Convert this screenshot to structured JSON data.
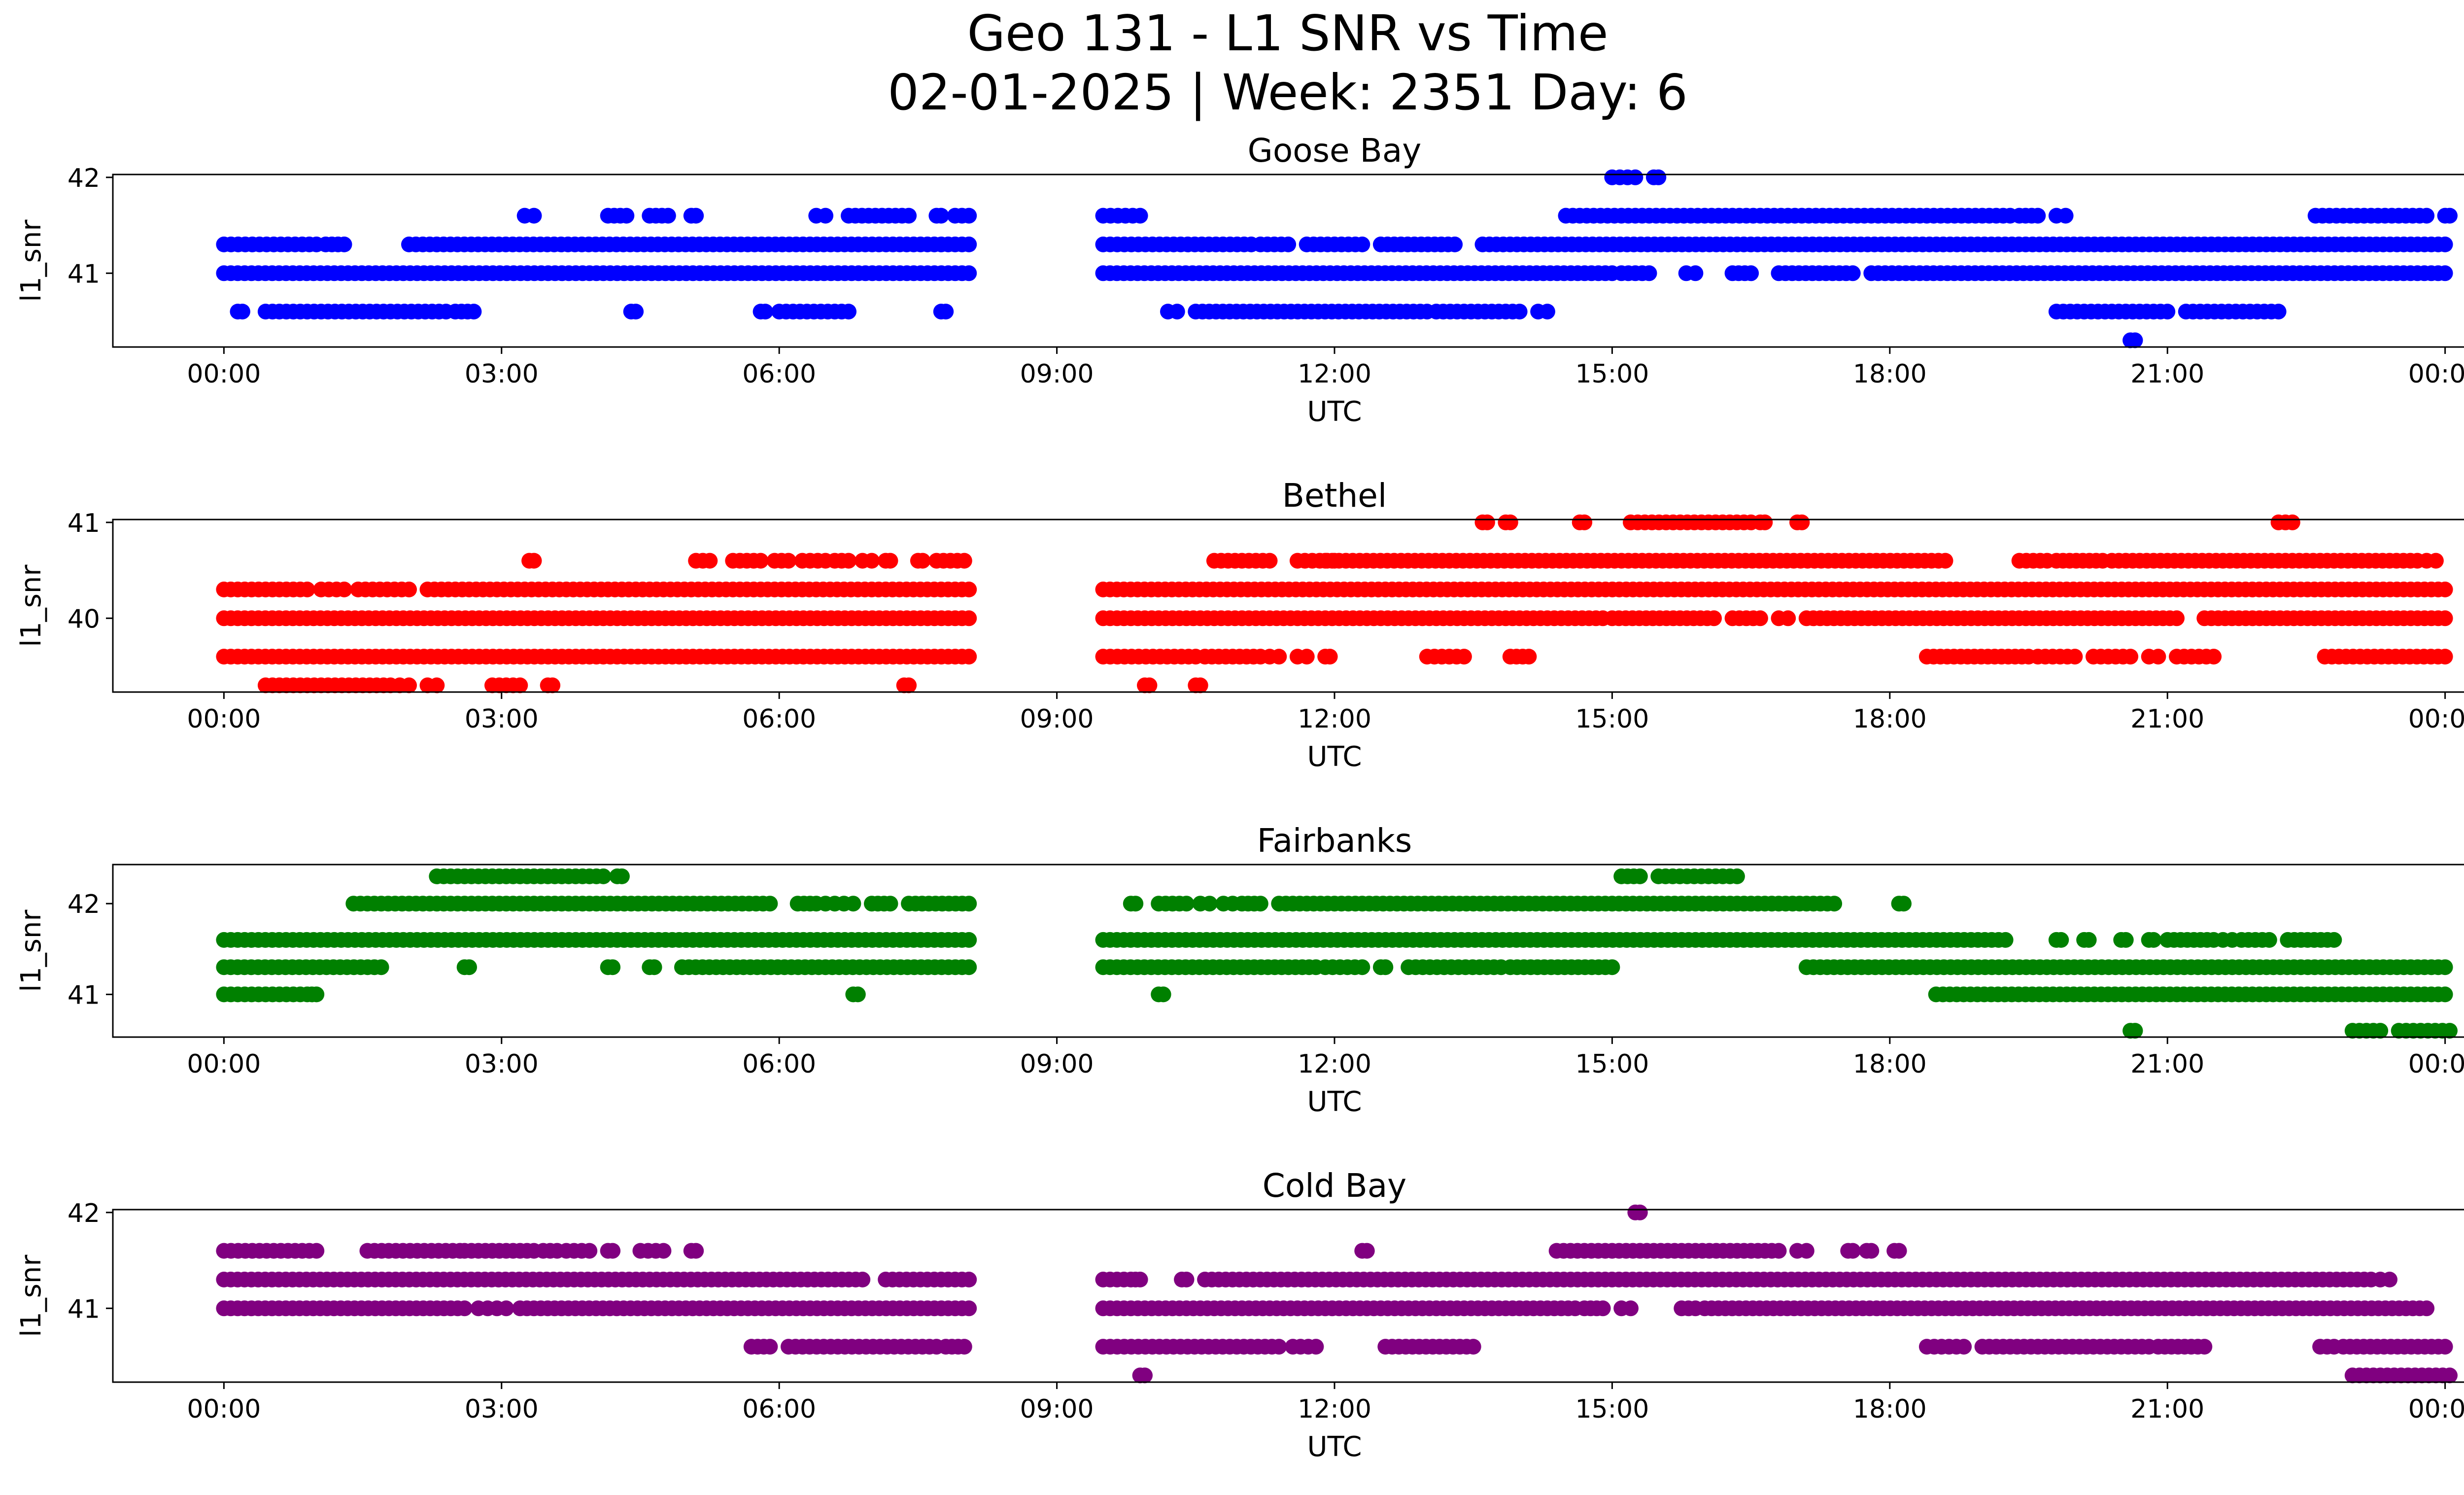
{
  "chart_data": {
    "type": "scatter",
    "title": "Geo 131 - L1 SNR vs Time",
    "subtitle": "02-01-2025 | Week: 2351 Day: 6",
    "x_tick_labels": [
      "00:00",
      "03:00",
      "06:00",
      "09:00",
      "12:00",
      "15:00",
      "18:00",
      "21:00",
      "00:00"
    ],
    "x_tick_hours": [
      0,
      3,
      6,
      9,
      12,
      15,
      18,
      21,
      24
    ],
    "xlim_hours": [
      -1.2,
      25.2
    ],
    "xlabel": "UTC",
    "ylabel": "l1_snr",
    "panels": [
      {
        "name": "Goose Bay",
        "color": "#0000ff",
        "ylim": [
          40.23,
          42.03
        ],
        "y_ticks": [
          41,
          42
        ],
        "y_tick_labels": [
          "41",
          "42"
        ],
        "bands": [
          {
            "y": 41.3,
            "segments": [
              [
                0.0,
                1.0
              ],
              [
                1.1,
                1.3
              ],
              [
                2.0,
                8.05
              ],
              [
                9.5,
                11.1
              ],
              [
                11.2,
                11.5
              ],
              [
                11.7,
                12.3
              ],
              [
                12.5,
                13.3
              ],
              [
                13.6,
                24.0
              ]
            ]
          },
          {
            "y": 41.0,
            "segments": [
              [
                0.0,
                8.05
              ],
              [
                9.5,
                15.0
              ],
              [
                15.1,
                15.4
              ],
              [
                15.8,
                15.9
              ],
              [
                16.3,
                16.5
              ],
              [
                16.8,
                17.6
              ],
              [
                17.8,
                24.0
              ]
            ]
          },
          {
            "y": 40.6,
            "segments": [
              [
                0.15,
                0.2
              ],
              [
                0.45,
                2.4
              ],
              [
                2.5,
                2.7
              ],
              [
                4.4,
                4.45
              ],
              [
                5.8,
                5.85
              ],
              [
                6.0,
                6.75
              ],
              [
                7.75,
                7.8
              ],
              [
                10.2,
                10.3
              ],
              [
                10.5,
                13.0
              ],
              [
                13.1,
                14.0
              ],
              [
                14.2,
                14.3
              ],
              [
                19.8,
                21.0
              ],
              [
                21.2,
                22.2
              ]
            ]
          },
          {
            "y": 41.6,
            "segments": [
              [
                3.25,
                3.35
              ],
              [
                4.15,
                4.35
              ],
              [
                4.6,
                4.8
              ],
              [
                5.05,
                5.1
              ],
              [
                6.4,
                6.5
              ],
              [
                6.75,
                7.4
              ],
              [
                7.7,
                7.75
              ],
              [
                7.9,
                8.05
              ],
              [
                9.5,
                9.9
              ],
              [
                14.5,
                19.3
              ],
              [
                19.4,
                19.6
              ],
              [
                19.8,
                19.9
              ],
              [
                22.6,
                23.8
              ],
              [
                24.0,
                24.05
              ]
            ]
          },
          {
            "y": 42.0,
            "segments": [
              [
                15.0,
                15.25
              ],
              [
                15.45,
                15.5
              ]
            ]
          },
          {
            "y": 40.3,
            "segments": [
              [
                20.6,
                20.65
              ]
            ]
          }
        ]
      },
      {
        "name": "Bethel",
        "color": "#ff0000",
        "ylim": [
          39.23,
          41.03
        ],
        "y_ticks": [
          40,
          41
        ],
        "y_tick_labels": [
          "40",
          "41"
        ],
        "bands": [
          {
            "y": 40.3,
            "segments": [
              [
                0.0,
                0.9
              ],
              [
                1.05,
                1.3
              ],
              [
                1.45,
                2.0
              ],
              [
                2.2,
                8.05
              ],
              [
                9.5,
                24.0
              ]
            ]
          },
          {
            "y": 40.0,
            "segments": [
              [
                0.0,
                8.05
              ],
              [
                9.5,
                14.9
              ],
              [
                15.0,
                16.1
              ],
              [
                16.3,
                16.6
              ],
              [
                16.8,
                16.9
              ],
              [
                17.1,
                21.1
              ],
              [
                21.4,
                24.0
              ]
            ]
          },
          {
            "y": 39.6,
            "segments": [
              [
                0.0,
                8.05
              ],
              [
                9.5,
                10.5
              ],
              [
                10.6,
                11.2
              ],
              [
                11.3,
                11.4
              ],
              [
                11.6,
                11.7
              ],
              [
                11.9,
                11.95
              ],
              [
                13.0,
                13.4
              ],
              [
                13.9,
                14.1
              ],
              [
                18.4,
                19.5
              ],
              [
                19.6,
                20.0
              ],
              [
                20.2,
                20.6
              ],
              [
                20.8,
                20.9
              ],
              [
                21.1,
                21.5
              ],
              [
                22.7,
                24.0
              ]
            ]
          },
          {
            "y": 39.3,
            "segments": [
              [
                0.45,
                1.8
              ],
              [
                1.9,
                2.0
              ],
              [
                2.2,
                2.3
              ],
              [
                2.9,
                3.2
              ],
              [
                3.5,
                3.55
              ],
              [
                7.35,
                7.4
              ],
              [
                9.95,
                10.0
              ],
              [
                10.5,
                10.55
              ]
            ]
          },
          {
            "y": 40.6,
            "segments": [
              [
                3.3,
                3.35
              ],
              [
                5.1,
                5.25
              ],
              [
                5.5,
                5.8
              ],
              [
                5.95,
                6.1
              ],
              [
                6.25,
                6.5
              ],
              [
                6.6,
                6.75
              ],
              [
                6.9,
                7.0
              ],
              [
                7.15,
                7.2
              ],
              [
                7.5,
                7.55
              ],
              [
                7.7,
                8.0
              ],
              [
                10.7,
                11.3
              ],
              [
                11.6,
                12.0
              ],
              [
                11.9,
                18.6
              ],
              [
                19.4,
                19.7
              ],
              [
                19.8,
                20.3
              ],
              [
                20.4,
                23.7
              ],
              [
                23.8,
                23.9
              ]
            ]
          },
          {
            "y": 41.0,
            "segments": [
              [
                13.6,
                13.65
              ],
              [
                13.85,
                13.9
              ],
              [
                14.65,
                14.7
              ],
              [
                15.2,
                16.5
              ],
              [
                16.6,
                16.65
              ],
              [
                17.0,
                17.05
              ],
              [
                22.2,
                22.35
              ]
            ]
          }
        ]
      },
      {
        "name": "Fairbanks",
        "color": "#008000",
        "ylim": [
          40.53,
          42.43
        ],
        "y_ticks": [
          41,
          42
        ],
        "y_tick_labels": [
          "41",
          "42"
        ],
        "bands": [
          {
            "y": 41.6,
            "segments": [
              [
                0.0,
                8.05
              ],
              [
                9.5,
                19.25
              ],
              [
                19.8,
                19.85
              ],
              [
                20.1,
                20.15
              ],
              [
                20.5,
                20.55
              ],
              [
                20.8,
                20.85
              ],
              [
                21.0,
                21.5
              ],
              [
                21.6,
                21.7
              ],
              [
                21.8,
                22.1
              ],
              [
                22.3,
                22.8
              ]
            ]
          },
          {
            "y": 41.3,
            "segments": [
              [
                0.0,
                1.7
              ],
              [
                2.6,
                2.65
              ],
              [
                4.15,
                4.2
              ],
              [
                4.6,
                4.65
              ],
              [
                4.95,
                8.05
              ],
              [
                9.5,
                11.8
              ],
              [
                11.9,
                12.3
              ],
              [
                12.5,
                12.55
              ],
              [
                12.8,
                13.8
              ],
              [
                13.9,
                15.0
              ],
              [
                17.1,
                24.0
              ]
            ]
          },
          {
            "y": 42.0,
            "segments": [
              [
                1.4,
                5.9
              ],
              [
                6.2,
                6.4
              ],
              [
                6.5,
                6.6
              ],
              [
                6.7,
                6.8
              ],
              [
                7.0,
                7.2
              ],
              [
                7.4,
                8.05
              ],
              [
                9.8,
                9.85
              ],
              [
                10.1,
                10.4
              ],
              [
                10.55,
                10.65
              ],
              [
                10.8,
                10.9
              ],
              [
                11.0,
                11.2
              ],
              [
                11.4,
                17.4
              ],
              [
                18.1,
                18.15
              ]
            ]
          },
          {
            "y": 41.0,
            "segments": [
              [
                0.0,
                0.9
              ],
              [
                0.95,
                1.0
              ],
              [
                6.8,
                6.85
              ],
              [
                10.1,
                10.15
              ],
              [
                18.5,
                24.0
              ]
            ]
          },
          {
            "y": 42.3,
            "segments": [
              [
                2.3,
                4.1
              ],
              [
                4.25,
                4.3
              ],
              [
                15.1,
                15.3
              ],
              [
                15.5,
                16.35
              ]
            ]
          },
          {
            "y": 40.6,
            "segments": [
              [
                20.6,
                20.65
              ],
              [
                23.0,
                23.3
              ],
              [
                23.5,
                24.05
              ]
            ]
          }
        ]
      },
      {
        "name": "Cold Bay",
        "color": "#800080",
        "ylim": [
          40.23,
          42.03
        ],
        "y_ticks": [
          41,
          42
        ],
        "y_tick_labels": [
          "41",
          "42"
        ],
        "bands": [
          {
            "y": 41.6,
            "segments": [
              [
                0.0,
                1.0
              ],
              [
                1.55,
                2.55
              ],
              [
                2.6,
                3.35
              ],
              [
                3.45,
                3.6
              ],
              [
                3.7,
                3.95
              ],
              [
                4.15,
                4.2
              ],
              [
                4.5,
                4.75
              ],
              [
                5.05,
                5.1
              ],
              [
                12.3,
                12.35
              ],
              [
                14.4,
                16.8
              ],
              [
                17.0,
                17.1
              ],
              [
                17.55,
                17.6
              ],
              [
                17.75,
                17.8
              ],
              [
                18.05,
                18.1
              ]
            ]
          },
          {
            "y": 41.3,
            "segments": [
              [
                0.0,
                6.9
              ],
              [
                7.15,
                8.05
              ],
              [
                9.5,
                9.8
              ],
              [
                9.85,
                9.9
              ],
              [
                10.35,
                10.4
              ],
              [
                10.6,
                23.2
              ],
              [
                23.3,
                23.4
              ]
            ]
          },
          {
            "y": 41.0,
            "segments": [
              [
                0.0,
                2.6
              ],
              [
                2.75,
                2.85
              ],
              [
                2.95,
                3.05
              ],
              [
                3.2,
                8.05
              ],
              [
                9.5,
                14.6
              ],
              [
                14.7,
                14.9
              ],
              [
                15.1,
                15.2
              ],
              [
                15.75,
                15.9
              ],
              [
                16.0,
                23.8
              ]
            ]
          },
          {
            "y": 40.6,
            "segments": [
              [
                5.7,
                5.9
              ],
              [
                6.1,
                7.7
              ],
              [
                7.8,
                8.0
              ],
              [
                9.5,
                11.4
              ],
              [
                11.55,
                11.8
              ],
              [
                12.55,
                13.5
              ],
              [
                18.4,
                18.8
              ],
              [
                19.0,
                20.8
              ],
              [
                20.9,
                21.4
              ],
              [
                22.65,
                22.8
              ],
              [
                22.9,
                24.0
              ]
            ]
          },
          {
            "y": 40.3,
            "segments": [
              [
                9.9,
                9.95
              ],
              [
                23.0,
                24.05
              ]
            ]
          },
          {
            "y": 42.0,
            "segments": [
              [
                15.25,
                15.3
              ]
            ]
          }
        ]
      }
    ]
  }
}
